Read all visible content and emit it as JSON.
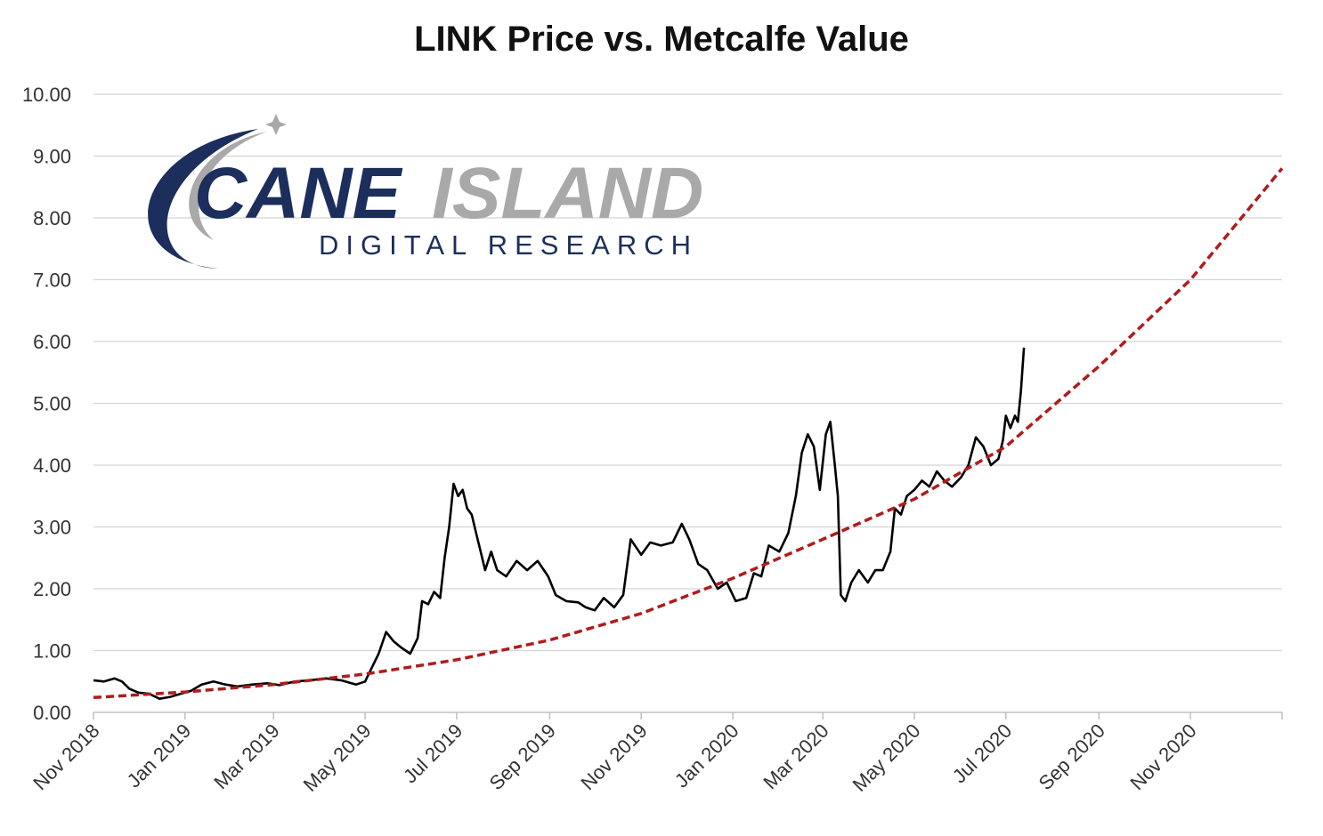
{
  "chart_data": {
    "type": "line",
    "title": "LINK Price vs. Metcalfe Value",
    "xlabel": "",
    "ylabel": "",
    "x_range": [
      "2018-11-01",
      "2021-01-01"
    ],
    "ylim": [
      0,
      10
    ],
    "y_ticks": [
      "0.00",
      "1.00",
      "2.00",
      "3.00",
      "4.00",
      "5.00",
      "6.00",
      "7.00",
      "8.00",
      "9.00",
      "10.00"
    ],
    "x_ticks": [
      {
        "label": "Nov 2018",
        "date": "2018-11-01"
      },
      {
        "label": "Jan 2019",
        "date": "2019-01-01"
      },
      {
        "label": "Mar 2019",
        "date": "2019-03-01"
      },
      {
        "label": "May 2019",
        "date": "2019-05-01"
      },
      {
        "label": "Jul 2019",
        "date": "2019-07-01"
      },
      {
        "label": "Sep 2019",
        "date": "2019-09-01"
      },
      {
        "label": "Nov 2019",
        "date": "2019-11-01"
      },
      {
        "label": "Jan 2020",
        "date": "2020-01-01"
      },
      {
        "label": "Mar 2020",
        "date": "2020-03-01"
      },
      {
        "label": "May 2020",
        "date": "2020-05-01"
      },
      {
        "label": "Jul 2020",
        "date": "2020-07-01"
      },
      {
        "label": "Sep 2020",
        "date": "2020-09-01"
      },
      {
        "label": "Nov 2020",
        "date": "2020-11-01"
      }
    ],
    "grid": true,
    "legend": "none",
    "series": [
      {
        "color": "#000000",
        "style": "solid",
        "points": [
          [
            "2018-11-01",
            0.52
          ],
          [
            "2018-11-08",
            0.5
          ],
          [
            "2018-11-15",
            0.55
          ],
          [
            "2018-11-20",
            0.5
          ],
          [
            "2018-11-25",
            0.38
          ],
          [
            "2018-12-01",
            0.32
          ],
          [
            "2018-12-08",
            0.3
          ],
          [
            "2018-12-15",
            0.22
          ],
          [
            "2018-12-22",
            0.25
          ],
          [
            "2018-12-29",
            0.3
          ],
          [
            "2019-01-05",
            0.35
          ],
          [
            "2019-01-12",
            0.45
          ],
          [
            "2019-01-20",
            0.5
          ],
          [
            "2019-01-28",
            0.45
          ],
          [
            "2019-02-05",
            0.42
          ],
          [
            "2019-02-15",
            0.45
          ],
          [
            "2019-02-25",
            0.47
          ],
          [
            "2019-03-05",
            0.44
          ],
          [
            "2019-03-15",
            0.5
          ],
          [
            "2019-03-25",
            0.52
          ],
          [
            "2019-04-05",
            0.55
          ],
          [
            "2019-04-15",
            0.52
          ],
          [
            "2019-04-25",
            0.45
          ],
          [
            "2019-05-01",
            0.5
          ],
          [
            "2019-05-05",
            0.7
          ],
          [
            "2019-05-10",
            0.95
          ],
          [
            "2019-05-15",
            1.3
          ],
          [
            "2019-05-20",
            1.15
          ],
          [
            "2019-05-25",
            1.05
          ],
          [
            "2019-05-31",
            0.95
          ],
          [
            "2019-06-05",
            1.2
          ],
          [
            "2019-06-08",
            1.8
          ],
          [
            "2019-06-12",
            1.75
          ],
          [
            "2019-06-16",
            1.95
          ],
          [
            "2019-06-20",
            1.85
          ],
          [
            "2019-06-23",
            2.5
          ],
          [
            "2019-06-26",
            3.0
          ],
          [
            "2019-06-29",
            3.7
          ],
          [
            "2019-07-02",
            3.5
          ],
          [
            "2019-07-05",
            3.6
          ],
          [
            "2019-07-08",
            3.3
          ],
          [
            "2019-07-11",
            3.2
          ],
          [
            "2019-07-14",
            2.9
          ],
          [
            "2019-07-17",
            2.6
          ],
          [
            "2019-07-20",
            2.3
          ],
          [
            "2019-07-24",
            2.6
          ],
          [
            "2019-07-28",
            2.3
          ],
          [
            "2019-08-03",
            2.2
          ],
          [
            "2019-08-10",
            2.45
          ],
          [
            "2019-08-17",
            2.3
          ],
          [
            "2019-08-24",
            2.45
          ],
          [
            "2019-08-31",
            2.2
          ],
          [
            "2019-09-05",
            1.9
          ],
          [
            "2019-09-12",
            1.8
          ],
          [
            "2019-09-20",
            1.78
          ],
          [
            "2019-09-25",
            1.7
          ],
          [
            "2019-10-01",
            1.65
          ],
          [
            "2019-10-07",
            1.85
          ],
          [
            "2019-10-14",
            1.7
          ],
          [
            "2019-10-20",
            1.9
          ],
          [
            "2019-10-25",
            2.8
          ],
          [
            "2019-11-01",
            2.55
          ],
          [
            "2019-11-07",
            2.75
          ],
          [
            "2019-11-14",
            2.7
          ],
          [
            "2019-11-22",
            2.75
          ],
          [
            "2019-11-28",
            3.05
          ],
          [
            "2019-12-03",
            2.8
          ],
          [
            "2019-12-09",
            2.4
          ],
          [
            "2019-12-15",
            2.3
          ],
          [
            "2019-12-22",
            2.0
          ],
          [
            "2019-12-28",
            2.1
          ],
          [
            "2020-01-03",
            1.8
          ],
          [
            "2020-01-10",
            1.85
          ],
          [
            "2020-01-15",
            2.25
          ],
          [
            "2020-01-20",
            2.2
          ],
          [
            "2020-01-25",
            2.7
          ],
          [
            "2020-02-01",
            2.6
          ],
          [
            "2020-02-07",
            2.9
          ],
          [
            "2020-02-12",
            3.5
          ],
          [
            "2020-02-16",
            4.2
          ],
          [
            "2020-02-20",
            4.5
          ],
          [
            "2020-02-24",
            4.3
          ],
          [
            "2020-02-28",
            3.6
          ],
          [
            "2020-03-03",
            4.5
          ],
          [
            "2020-03-06",
            4.7
          ],
          [
            "2020-03-09",
            4.0
          ],
          [
            "2020-03-11",
            3.5
          ],
          [
            "2020-03-13",
            1.9
          ],
          [
            "2020-03-16",
            1.8
          ],
          [
            "2020-03-20",
            2.1
          ],
          [
            "2020-03-25",
            2.3
          ],
          [
            "2020-03-31",
            2.1
          ],
          [
            "2020-04-05",
            2.3
          ],
          [
            "2020-04-10",
            2.3
          ],
          [
            "2020-04-15",
            2.6
          ],
          [
            "2020-04-18",
            3.3
          ],
          [
            "2020-04-22",
            3.2
          ],
          [
            "2020-04-26",
            3.5
          ],
          [
            "2020-05-01",
            3.6
          ],
          [
            "2020-05-06",
            3.75
          ],
          [
            "2020-05-11",
            3.65
          ],
          [
            "2020-05-16",
            3.9
          ],
          [
            "2020-05-21",
            3.75
          ],
          [
            "2020-05-26",
            3.65
          ],
          [
            "2020-06-01",
            3.8
          ],
          [
            "2020-06-06",
            4.0
          ],
          [
            "2020-06-11",
            4.45
          ],
          [
            "2020-06-16",
            4.3
          ],
          [
            "2020-06-21",
            4.0
          ],
          [
            "2020-06-26",
            4.1
          ],
          [
            "2020-06-29",
            4.4
          ],
          [
            "2020-07-01",
            4.8
          ],
          [
            "2020-07-04",
            4.6
          ],
          [
            "2020-07-07",
            4.8
          ],
          [
            "2020-07-09",
            4.7
          ],
          [
            "2020-07-11",
            5.2
          ],
          [
            "2020-07-13",
            5.9
          ]
        ]
      },
      {
        "color": "#b01c1c",
        "style": "dashed",
        "points": [
          [
            "2018-11-01",
            0.24
          ],
          [
            "2019-01-01",
            0.33
          ],
          [
            "2019-03-01",
            0.45
          ],
          [
            "2019-05-01",
            0.62
          ],
          [
            "2019-07-01",
            0.85
          ],
          [
            "2019-09-01",
            1.17
          ],
          [
            "2019-11-01",
            1.6
          ],
          [
            "2020-01-01",
            2.17
          ],
          [
            "2020-03-01",
            2.8
          ],
          [
            "2020-05-01",
            3.45
          ],
          [
            "2020-07-01",
            4.3
          ],
          [
            "2020-09-01",
            5.6
          ],
          [
            "2020-11-01",
            7.0
          ],
          [
            "2021-01-01",
            8.8
          ]
        ]
      }
    ]
  },
  "logo": {
    "word1": "CANE",
    "word2": "ISLAND",
    "tagline": "DIGITAL   RESEARCH",
    "navy": "#1c2e5c",
    "grey": "#a9a9a9"
  }
}
